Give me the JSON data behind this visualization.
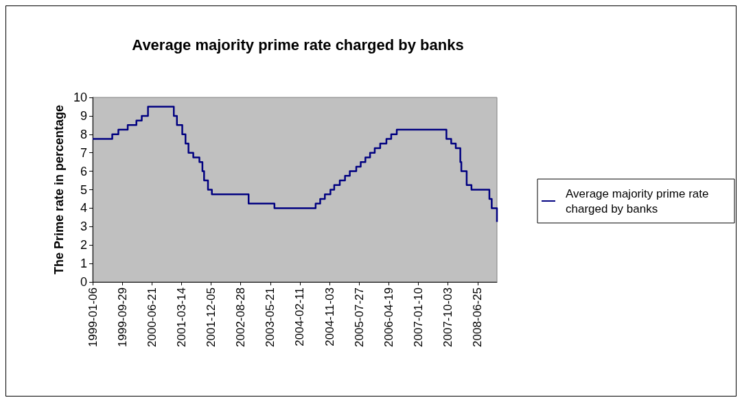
{
  "chart_data": {
    "type": "step",
    "title": "Average majority prime rate charged by banks",
    "ylabel": "The Prime rate in percentage",
    "x": [
      "1999-01-06",
      "1999-07-01",
      "1999-08-25",
      "1999-11-17",
      "2000-02-03",
      "2000-03-22",
      "2000-05-17",
      "2001-01-04",
      "2001-02-01",
      "2001-03-21",
      "2001-04-19",
      "2001-05-16",
      "2001-06-28",
      "2001-08-22",
      "2001-09-18",
      "2001-10-03",
      "2001-11-07",
      "2001-12-12",
      "2002-11-07",
      "2003-06-27",
      "2004-07-01",
      "2004-08-11",
      "2004-09-22",
      "2004-11-11",
      "2004-12-15",
      "2005-02-03",
      "2005-03-22",
      "2005-05-04",
      "2005-07-01",
      "2005-08-10",
      "2005-09-21",
      "2005-11-02",
      "2005-12-14",
      "2006-02-01",
      "2006-03-29",
      "2006-05-11",
      "2006-06-30",
      "2007-09-19",
      "2007-11-01",
      "2007-12-12",
      "2008-01-22",
      "2008-01-31",
      "2008-03-19",
      "2008-05-01",
      "2008-10-09",
      "2008-10-30",
      "2008-12-16"
    ],
    "series": [
      {
        "name": "Average majority prime rate charged by banks",
        "color": "#000080",
        "values": [
          7.75,
          8,
          8.25,
          8.5,
          8.75,
          9,
          9.5,
          9,
          8.5,
          8,
          7.5,
          7,
          6.75,
          6.5,
          6,
          5.5,
          5,
          4.75,
          4.25,
          4,
          4.25,
          4.5,
          4.75,
          5,
          5.25,
          5.5,
          5.75,
          6,
          6.25,
          6.5,
          6.75,
          7,
          7.25,
          7.5,
          7.75,
          8,
          8.25,
          7.75,
          7.5,
          7.25,
          6.5,
          6,
          5.25,
          5,
          4.5,
          4,
          3.25
        ]
      }
    ],
    "xlim": [
      "1999-01-06",
      "2008-12-16"
    ],
    "xticks": [
      "1999-01-06",
      "1999-09-29",
      "2000-06-21",
      "2001-03-14",
      "2001-12-05",
      "2002-08-28",
      "2003-05-21",
      "2004-02-11",
      "2004-11-03",
      "2005-07-27",
      "2006-04-19",
      "2007-01-10",
      "2007-10-03",
      "2008-06-25"
    ],
    "ylim": [
      0,
      10
    ],
    "yticks": [
      0,
      1,
      2,
      3,
      4,
      5,
      6,
      7,
      8,
      9,
      10
    ],
    "grid": false,
    "legend": "right",
    "marker": "none",
    "line_style": "solid"
  }
}
